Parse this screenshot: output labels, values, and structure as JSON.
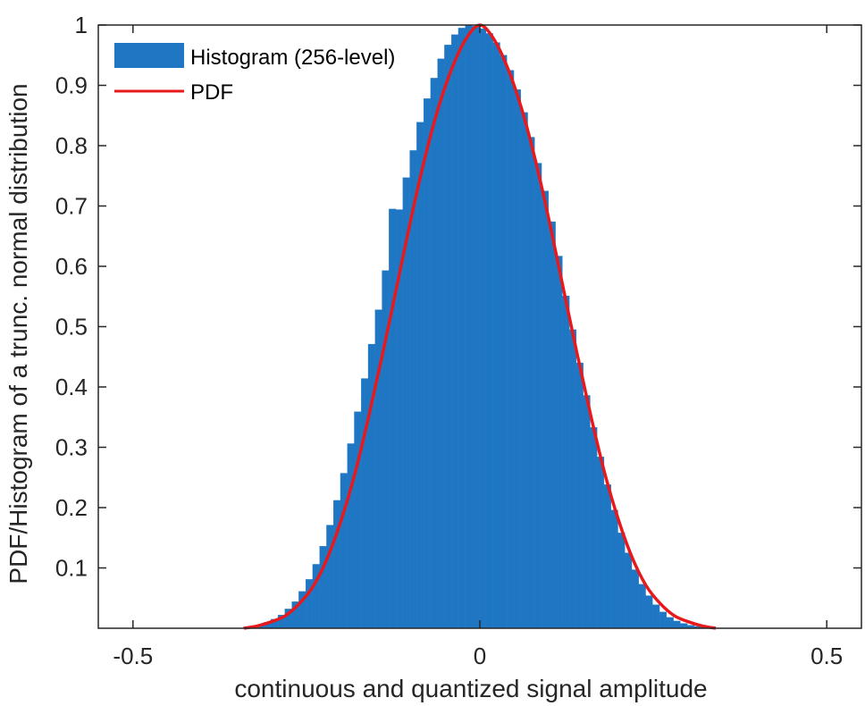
{
  "chart_data": {
    "type": "bar",
    "xlabel": "continuous and quantized signal amplitude",
    "ylabel": "PDF/Histogram of a trunc. normal distribution",
    "xlim": [
      -0.55,
      0.55
    ],
    "ylim": [
      0,
      1
    ],
    "x_ticks": [
      -0.5,
      0,
      0.5
    ],
    "x_tick_labels": [
      "-0.5",
      "0",
      "0.5"
    ],
    "y_ticks": [
      0.1,
      0.2,
      0.3,
      0.4,
      0.5,
      0.6,
      0.7,
      0.8,
      0.9,
      1
    ],
    "y_tick_labels": [
      "0.1",
      "0.2",
      "0.3",
      "0.4",
      "0.5",
      "0.6",
      "0.7",
      "0.8",
      "0.9",
      "1"
    ],
    "grid": false,
    "legend_position": "top-left",
    "colors": {
      "histogram": "#1f77c4",
      "pdf": "#e8191c",
      "axes": "#262626"
    },
    "series": [
      {
        "name": "Histogram (256-level)",
        "kind": "histogram",
        "x": [
          -0.336,
          -0.326,
          -0.316,
          -0.306,
          -0.296,
          -0.286,
          -0.276,
          -0.266,
          -0.256,
          -0.246,
          -0.236,
          -0.226,
          -0.216,
          -0.206,
          -0.196,
          -0.186,
          -0.176,
          -0.166,
          -0.156,
          -0.146,
          -0.136,
          -0.126,
          -0.116,
          -0.106,
          -0.096,
          -0.086,
          -0.076,
          -0.066,
          -0.056,
          -0.046,
          -0.036,
          -0.026,
          -0.016,
          -0.006,
          0.004,
          0.014,
          0.024,
          0.034,
          0.044,
          0.054,
          0.064,
          0.074,
          0.084,
          0.094,
          0.104,
          0.114,
          0.124,
          0.134,
          0.144,
          0.154,
          0.164,
          0.174,
          0.184,
          0.194,
          0.204,
          0.214,
          0.224,
          0.234,
          0.244,
          0.254,
          0.264,
          0.274,
          0.284,
          0.294,
          0.304,
          0.314,
          0.324,
          0.334
        ],
        "values": [
          0.002,
          0.004,
          0.006,
          0.01,
          0.015,
          0.022,
          0.032,
          0.044,
          0.061,
          0.081,
          0.106,
          0.136,
          0.171,
          0.212,
          0.257,
          0.306,
          0.359,
          0.414,
          0.471,
          0.528,
          0.593,
          0.695,
          0.694,
          0.747,
          0.792,
          0.839,
          0.878,
          0.912,
          0.944,
          0.967,
          0.984,
          0.995,
          1.0,
          0.998,
          0.994,
          0.986,
          0.971,
          0.95,
          0.925,
          0.893,
          0.855,
          0.814,
          0.771,
          0.725,
          0.674,
          0.617,
          0.551,
          0.495,
          0.44,
          0.386,
          0.333,
          0.284,
          0.238,
          0.196,
          0.158,
          0.125,
          0.097,
          0.073,
          0.054,
          0.039,
          0.027,
          0.018,
          0.012,
          0.008,
          0.005,
          0.003,
          0.002,
          0.001
        ]
      },
      {
        "name": "PDF",
        "kind": "line",
        "x": [
          -0.34,
          -0.32,
          -0.3,
          -0.28,
          -0.26,
          -0.24,
          -0.22,
          -0.2,
          -0.18,
          -0.16,
          -0.14,
          -0.12,
          -0.1,
          -0.08,
          -0.06,
          -0.04,
          -0.02,
          0.0,
          0.02,
          0.04,
          0.06,
          0.08,
          0.1,
          0.12,
          0.14,
          0.16,
          0.18,
          0.2,
          0.22,
          0.24,
          0.26,
          0.28,
          0.3,
          0.32,
          0.34
        ],
        "values": [
          0.0,
          0.004,
          0.011,
          0.021,
          0.041,
          0.07,
          0.116,
          0.179,
          0.257,
          0.352,
          0.456,
          0.565,
          0.675,
          0.776,
          0.862,
          0.929,
          0.977,
          1.0,
          0.977,
          0.929,
          0.862,
          0.776,
          0.675,
          0.565,
          0.456,
          0.352,
          0.257,
          0.179,
          0.116,
          0.07,
          0.041,
          0.021,
          0.011,
          0.004,
          0.0
        ]
      }
    ]
  }
}
